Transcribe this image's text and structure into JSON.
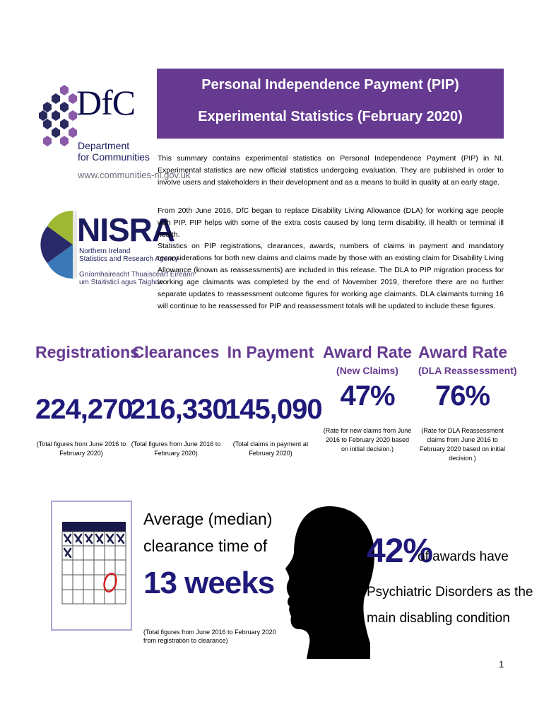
{
  "logos": {
    "dfc": {
      "mark": "DfC",
      "line1": "Department",
      "line2": "for Communities",
      "url": "www.communities-ni.gov.uk"
    },
    "nisra": {
      "mark": "NISRA",
      "sub1": "Northern Ireland",
      "sub2": "Statistics and Research Agency",
      "irish1": "Gníomhaireacht Thuaisceart Éireann",
      "irish2": "um Staitisticí agus Taighde"
    }
  },
  "banner": {
    "title": "Personal Independence Payment (PIP)",
    "subtitle": "Experimental Statistics (February 2020)"
  },
  "intro": {
    "p1": "This summary contains experimental statistics on Personal Independence Payment (PIP) in NI.  Experimental statistics are new official statistics undergoing evaluation. They are published in order to involve users and stakeholders in their development and as a means to build in quality at an early stage.",
    "p2": "From 20th June 2016, DfC began to replace Disability Living Allowance (DLA) for working age people with PIP.  PIP helps with some of the extra costs caused by long term disability, ill health or terminal ill health.",
    "p3": "Statistics on PIP registrations, clearances, awards, numbers of claims in payment and mandatory reconsiderations for both new claims and claims made by those with an existing claim for Disability Living Allowance (known as reassessments) are included in this release. The DLA to PIP migration process for working age claimants was completed by the end of November 2019, therefore there are no further separate updates to reassessment outcome figures for working age claimants. DLA claimants turning 16 will continue to be reassessed for PIP and reassessment totals will be updated to include these figures."
  },
  "stats": [
    {
      "heading": "Registrations",
      "sub": "",
      "value": "224,270",
      "note": "(Total figures from June 2016 to February 2020)"
    },
    {
      "heading": "Clearances",
      "sub": "",
      "value": "216,330",
      "note": "(Total figures from June 2016 to February 2020)"
    },
    {
      "heading": "In Payment",
      "sub": "",
      "value": "145,090",
      "note": "(Total claims in payment at February 2020)"
    },
    {
      "heading": "Award Rate",
      "sub": "(New Claims)",
      "value": "47%",
      "note": "(Rate for new claims from June 2016 to February 2020 based on initial decision.)"
    },
    {
      "heading": "Award Rate",
      "sub": "(DLA Reassessment)",
      "value": "76%",
      "note": "(Rate for DLA Reassessment claims from June 2016 to February 2020 based on initial decision.)"
    }
  ],
  "median": {
    "line1": "Average (median)",
    "line2": "clearance time of",
    "value": "13 weeks",
    "note1": "(Total figures from June 2016 to February 2020",
    "note2": "from registration to clearance)"
  },
  "psychiatric": {
    "value": "42%",
    "suffix": "of awards have",
    "line1": "Psychiatric Disorders as the",
    "line2": "main disabling condition"
  },
  "page_number": "1"
}
